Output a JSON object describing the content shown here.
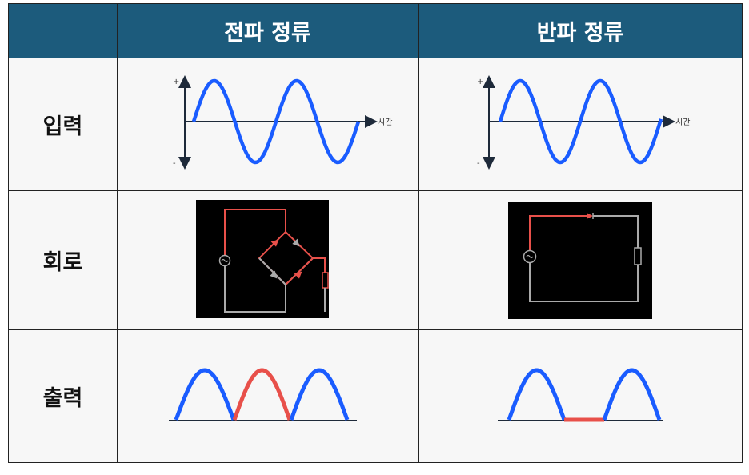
{
  "header": {
    "corner": "",
    "col1": "전파 정류",
    "col2": "반파 정류"
  },
  "rows": {
    "input": "입력",
    "circuit": "회로",
    "output": "출력"
  },
  "axis": {
    "plus": "+",
    "minus": "-",
    "time": "시간"
  },
  "colors": {
    "header": "#1c5b7c",
    "wave": "#1a5cff",
    "current": "#e8504a",
    "wire": "#aaaaaa",
    "circuit_bg": "#000000"
  }
}
